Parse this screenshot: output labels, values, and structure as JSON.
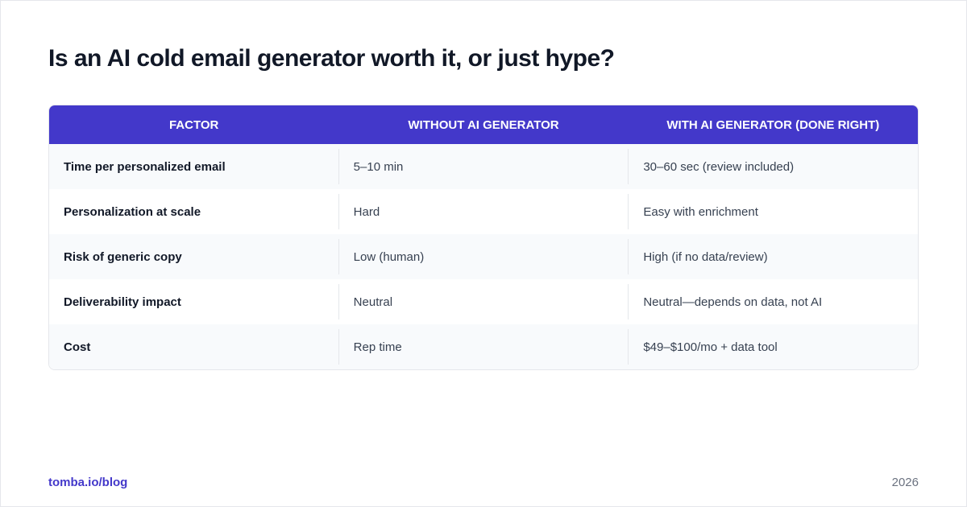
{
  "header": {
    "title": "Is an AI cold email generator worth it, or just hype?"
  },
  "table": {
    "columns": [
      "FACTOR",
      "WITHOUT AI GENERATOR",
      "WITH AI GENERATOR (DONE RIGHT)"
    ],
    "rows": [
      [
        "Time per personalized email",
        "5–10 min",
        "30–60 sec (review included)"
      ],
      [
        "Personalization at scale",
        "Hard",
        "Easy with enrichment"
      ],
      [
        "Risk of generic copy",
        "Low (human)",
        "High (if no data/review)"
      ],
      [
        "Deliverability impact",
        "Neutral",
        "Neutral—depends on data, not AI"
      ],
      [
        "Cost",
        "Rep time",
        "$49–$100/mo + data tool"
      ]
    ]
  },
  "footer": {
    "source": "tomba.io/blog",
    "year": "2026"
  }
}
